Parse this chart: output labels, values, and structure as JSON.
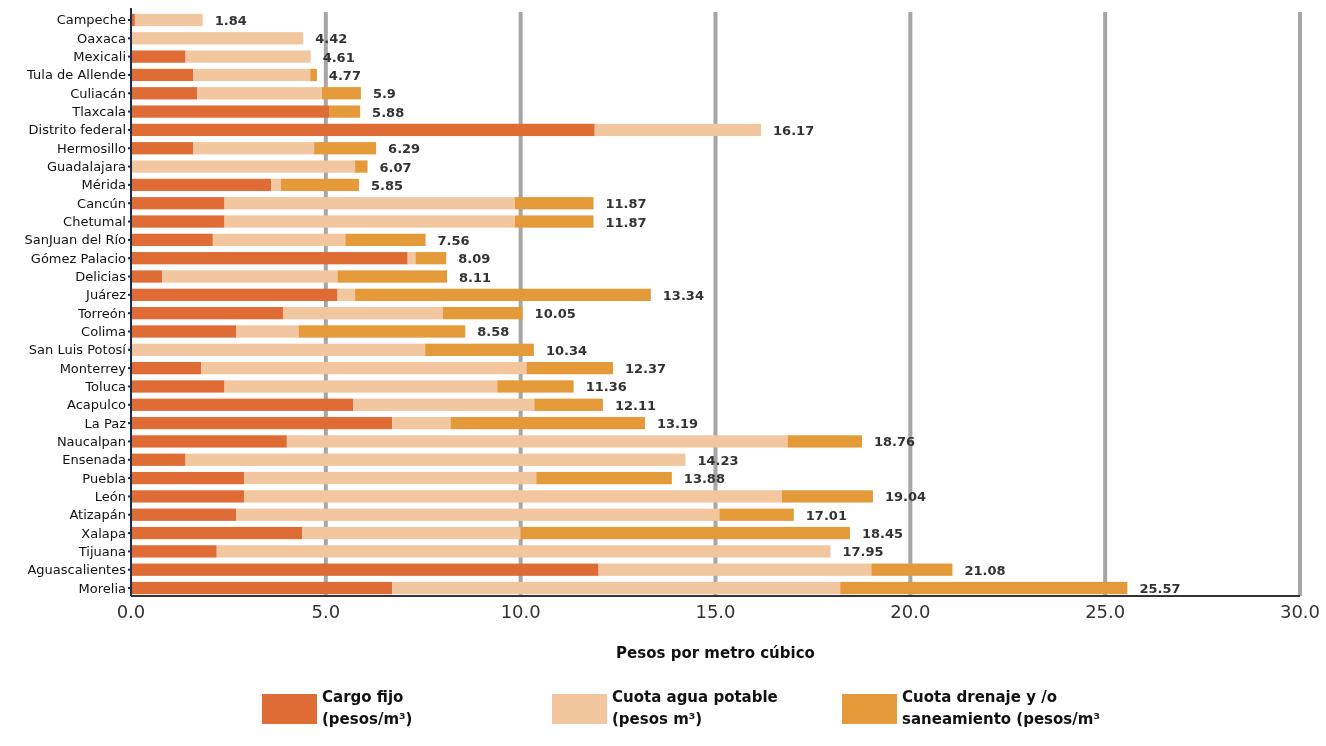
{
  "chart_data": {
    "type": "bar",
    "orientation": "horizontal",
    "stacked": true,
    "xlabel": "Pesos por metro cúbico",
    "categories": [
      "Campeche",
      "Oaxaca",
      "Mexicali",
      "Tula de Allende",
      "Culiacán",
      "Tlaxcala",
      "Distrito federal",
      "Hermosillo",
      "Guadalajara",
      "Mérida",
      "Cancún",
      "Chetumal",
      "SanJuan del Río",
      "Gómez Palacio",
      "Delicias",
      "Juárez",
      "Torreón",
      "Colima",
      "San Luis Potosí",
      "Monterrey",
      "Toluca",
      "Acapulco",
      "La Paz",
      "Naucalpan",
      "Ensenada",
      "Puebla",
      "León",
      "Atizapán",
      "Xalapa",
      "Tijuana",
      "Aguascalientes",
      "Morelia"
    ],
    "series": [
      {
        "name": "Cargo fijo (pesos/m³)",
        "color": "#e06c35",
        "values": [
          0.1,
          0,
          1.4,
          1.6,
          1.7,
          5.1,
          11.9,
          1.6,
          0,
          3.6,
          2.4,
          2.4,
          2.1,
          7.1,
          0.8,
          5.3,
          3.9,
          2.7,
          0,
          1.8,
          2.4,
          5.7,
          6.7,
          4.0,
          1.4,
          2.9,
          2.9,
          2.7,
          4.4,
          2.2,
          12.0,
          6.7
        ]
      },
      {
        "name": "Cuota agua potable (pesos m³)",
        "color": "#f2c7a0",
        "values": [
          1.74,
          4.42,
          3.21,
          3.0,
          3.2,
          0,
          4.27,
          3.1,
          5.75,
          0.25,
          7.45,
          7.45,
          3.4,
          0.2,
          4.5,
          0.45,
          4.1,
          1.6,
          7.55,
          8.35,
          7.0,
          4.65,
          1.5,
          12.85,
          12.83,
          7.5,
          13.8,
          12.4,
          5.6,
          15.75,
          7.0,
          11.5
        ]
      },
      {
        "name": "Cuota drenaje y /o saneamiento (pesos/m³",
        "color": "#e59a3a",
        "values": [
          0,
          0,
          0,
          0.17,
          1.0,
          0.78,
          0,
          1.59,
          0.32,
          2.0,
          2.02,
          2.02,
          2.06,
          0.79,
          2.81,
          7.59,
          2.05,
          4.28,
          2.79,
          2.22,
          1.96,
          1.76,
          4.99,
          1.91,
          0,
          3.48,
          2.34,
          1.91,
          8.45,
          0,
          2.08,
          7.37
        ]
      }
    ],
    "totals": [
      "1.84",
      "4.42",
      "4.61",
      "4.77",
      "5.9",
      "5.88",
      "16.17",
      "6.29",
      "6.07",
      "5.85",
      "11.87",
      "11.87",
      "7.56",
      "8.09",
      "8.11",
      "13.34",
      "10.05",
      "8.58",
      "10.34",
      "12.37",
      "11.36",
      "12.11",
      "13.19",
      "18.76",
      "14.23",
      "13.88",
      "19.04",
      "17.01",
      "18.45",
      "17.95",
      "21.08",
      "25.57"
    ],
    "xlim": [
      0,
      30
    ],
    "xticks": [
      {
        "value": 0,
        "label": "0.0"
      },
      {
        "value": 5,
        "label": "5.0"
      },
      {
        "value": 10,
        "label": "10.0"
      },
      {
        "value": 15,
        "label": "15.0"
      },
      {
        "value": 20,
        "label": "20.0"
      },
      {
        "value": 25,
        "label": "25.0"
      },
      {
        "value": 30,
        "label": "30.0"
      }
    ],
    "grid": "x",
    "legend": "bottom"
  }
}
